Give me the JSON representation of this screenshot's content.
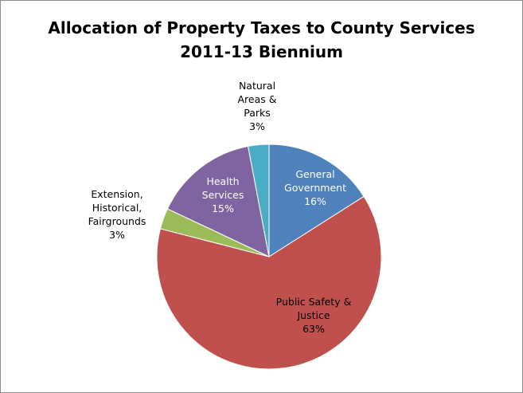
{
  "chart_data": {
    "type": "pie",
    "title": "Allocation of Property Taxes to County Services",
    "subtitle": "2011-13 Biennium",
    "slices": [
      {
        "label_lines": [
          "General",
          "Government"
        ],
        "percent_label": "16%",
        "value": 16,
        "color": "#4f81bd"
      },
      {
        "label_lines": [
          "Public Safety &",
          "Justice"
        ],
        "percent_label": "63%",
        "value": 63,
        "color": "#c0504d"
      },
      {
        "label_lines": [
          "Extension,",
          "Historical,",
          "Fairgrounds"
        ],
        "percent_label": "3%",
        "value": 3,
        "color": "#9bbb59"
      },
      {
        "label_lines": [
          "Health",
          "Services"
        ],
        "percent_label": "15%",
        "value": 15,
        "color": "#8064a2"
      },
      {
        "label_lines": [
          "Natural",
          "Areas &",
          "Parks"
        ],
        "percent_label": "3%",
        "value": 3,
        "color": "#4bacc6"
      }
    ]
  }
}
